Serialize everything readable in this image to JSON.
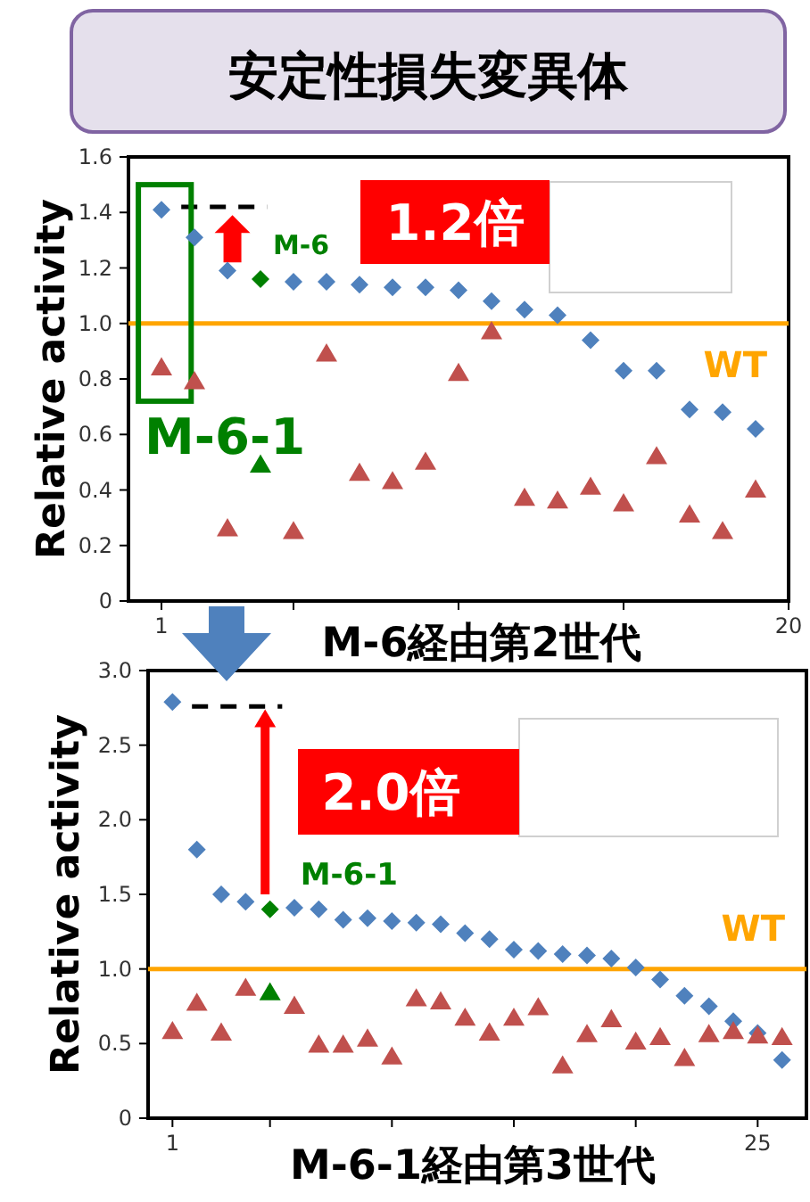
{
  "chart_data": [
    {
      "type": "scatter",
      "title": "安定性損失変異体",
      "xlabel": "M-6経由第2世代",
      "ylabel": "Relative activity",
      "xlim": [
        0,
        20
      ],
      "xticks": [
        {
          "value": 1,
          "label": "1"
        },
        {
          "value": 5,
          "label": null
        },
        {
          "value": 10,
          "label": null
        },
        {
          "value": 15,
          "label": null
        },
        {
          "value": 20,
          "label": "20"
        }
      ],
      "ylim": [
        0,
        1.6
      ],
      "yticks": [
        0,
        {
          "value": 0.2,
          "label": "0.2"
        },
        {
          "value": 0.4,
          "label": "0.4"
        },
        {
          "value": 0.6,
          "label": "0.6"
        },
        {
          "value": 0.8,
          "label": "0.8"
        },
        {
          "value": 1.0,
          "label": "1.0"
        },
        {
          "value": 1.2,
          "label": "1.2"
        },
        {
          "value": 1.4,
          "label": "1.4"
        },
        {
          "value": 1.6,
          "label": "1.6"
        }
      ],
      "x": [
        1,
        2,
        3,
        4,
        5,
        6,
        7,
        8,
        9,
        10,
        11,
        12,
        13,
        14,
        15,
        16,
        17,
        18,
        19
      ],
      "series": [
        {
          "type": "scatter",
          "marker": "diamond",
          "colors": [
            "#4f81bd",
            "#4f81bd",
            "#4f81bd",
            "#008000",
            "#4f81bd",
            "#4f81bd",
            "#4f81bd",
            "#4f81bd",
            "#4f81bd",
            "#4f81bd",
            "#4f81bd",
            "#4f81bd",
            "#4f81bd",
            "#4f81bd",
            "#4f81bd",
            "#4f81bd",
            "#4f81bd",
            "#4f81bd",
            "#4f81bd"
          ],
          "values": [
            1.41,
            1.31,
            1.19,
            1.16,
            1.15,
            1.15,
            1.14,
            1.13,
            1.13,
            1.12,
            1.08,
            1.05,
            1.03,
            0.94,
            0.83,
            0.83,
            0.69,
            0.68,
            0.62
          ]
        },
        {
          "type": "scatter",
          "marker": "triangle",
          "colors": [
            "#c0504d",
            "#c0504d",
            "#c0504d",
            "#008000",
            "#c0504d",
            "#c0504d",
            "#c0504d",
            "#c0504d",
            "#c0504d",
            "#c0504d",
            "#c0504d",
            "#c0504d",
            "#c0504d",
            "#c0504d",
            "#c0504d",
            "#c0504d",
            "#c0504d",
            "#c0504d",
            "#c0504d"
          ],
          "values": [
            0.84,
            0.79,
            0.26,
            0.49,
            0.25,
            0.89,
            0.46,
            0.43,
            0.5,
            0.82,
            0.97,
            0.37,
            0.36,
            0.41,
            0.35,
            0.52,
            0.31,
            0.25,
            0.4
          ]
        }
      ],
      "ref_lines": [
        {
          "axis": "y",
          "value": 1.0,
          "label": "WT",
          "color": "#ffa500"
        }
      ],
      "annotations": [
        "1.2倍",
        {
          "text": "M-6",
          "x": 4,
          "y": 1.16
        },
        "M-6-1"
      ],
      "grid": false
    },
    {
      "type": "scatter",
      "xlabel": "M-6-1経由第3世代",
      "ylabel": "Relative activity",
      "xlim": [
        0,
        27
      ],
      "xticks": [
        {
          "value": 1,
          "label": "1"
        },
        {
          "value": 5,
          "label": null
        },
        {
          "value": 10,
          "label": null
        },
        {
          "value": 15,
          "label": null
        },
        {
          "value": 20,
          "label": null
        },
        {
          "value": 25,
          "label": "25"
        }
      ],
      "ylim": [
        0,
        3
      ],
      "yticks": [
        0,
        {
          "value": 0.5,
          "label": "0.5"
        },
        {
          "value": 1.0,
          "label": "1.0"
        },
        {
          "value": 1.5,
          "label": "1.5"
        },
        {
          "value": 2.0,
          "label": "2.0"
        },
        {
          "value": 2.5,
          "label": "2.5"
        },
        {
          "value": 3.0,
          "label": "3.0"
        }
      ],
      "x": [
        1,
        2,
        3,
        4,
        5,
        6,
        7,
        8,
        9,
        10,
        11,
        12,
        13,
        14,
        15,
        16,
        17,
        18,
        19,
        20,
        21,
        22,
        23,
        24,
        25,
        26
      ],
      "series": [
        {
          "type": "scatter",
          "marker": "diamond",
          "colors": [
            "#4f81bd",
            "#4f81bd",
            "#4f81bd",
            "#4f81bd",
            "#008000",
            "#4f81bd",
            "#4f81bd",
            "#4f81bd",
            "#4f81bd",
            "#4f81bd",
            "#4f81bd",
            "#4f81bd",
            "#4f81bd",
            "#4f81bd",
            "#4f81bd",
            "#4f81bd",
            "#4f81bd",
            "#4f81bd",
            "#4f81bd",
            "#4f81bd",
            "#4f81bd",
            "#4f81bd",
            "#4f81bd",
            "#4f81bd",
            "#4f81bd",
            "#4f81bd"
          ],
          "values": [
            2.79,
            1.8,
            1.5,
            1.45,
            1.4,
            1.41,
            1.4,
            1.33,
            1.34,
            1.32,
            1.31,
            1.3,
            1.24,
            1.2,
            1.13,
            1.12,
            1.1,
            1.09,
            1.07,
            1.01,
            0.93,
            0.82,
            0.75,
            0.65,
            0.57,
            0.39
          ]
        },
        {
          "type": "scatter",
          "marker": "triangle",
          "colors": [
            "#c0504d",
            "#c0504d",
            "#c0504d",
            "#c0504d",
            "#008000",
            "#c0504d",
            "#c0504d",
            "#c0504d",
            "#c0504d",
            "#c0504d",
            "#c0504d",
            "#c0504d",
            "#c0504d",
            "#c0504d",
            "#c0504d",
            "#c0504d",
            "#c0504d",
            "#c0504d",
            "#c0504d",
            "#c0504d",
            "#c0504d",
            "#c0504d",
            "#c0504d",
            "#c0504d",
            "#c0504d",
            "#c0504d"
          ],
          "values": [
            0.58,
            0.77,
            0.57,
            0.87,
            0.84,
            0.75,
            0.49,
            0.49,
            0.53,
            0.41,
            0.8,
            0.78,
            0.67,
            0.57,
            0.67,
            0.74,
            0.35,
            0.56,
            0.66,
            0.51,
            0.54,
            0.4,
            0.56,
            0.58,
            0.55,
            0.54
          ]
        }
      ],
      "ref_lines": [
        {
          "axis": "y",
          "value": 1.0,
          "label": "WT",
          "color": "#ffa500"
        }
      ],
      "annotations": [
        "2.0倍",
        {
          "text": "M-6-1",
          "x": 5,
          "y": 1.4
        }
      ],
      "grid": false
    }
  ]
}
